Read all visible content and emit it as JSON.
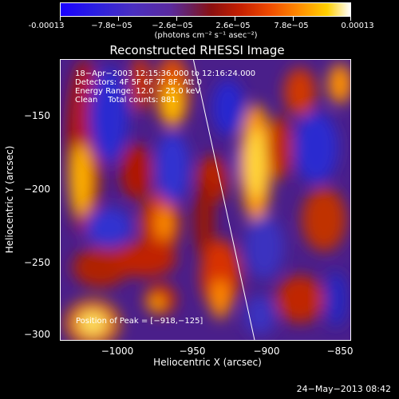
{
  "colorbar": {
    "tick_labels": [
      "-0.00013",
      "−7.8e−05",
      "−2.6e−05",
      "2.6e−05",
      "7.8e−05",
      "0.00013"
    ],
    "unit": "(photons cm⁻² s⁻¹ asec⁻²)"
  },
  "title": "Reconstructed RHESSI Image",
  "info": {
    "line1": "18−Apr−2003 12:15:36.000 to 12:16:24.000",
    "line2": "Detectors: 4F 5F 6F 7F 8F, Att 0",
    "line3": "Energy Range: 12.0 − 25.0 keV",
    "line4": "Clean    Total counts: 881."
  },
  "peak": "Position of Peak = [−918,−125]",
  "axes": {
    "xlabel": "Heliocentric X (arcsec)",
    "ylabel": "Heliocentric Y (arcsec)",
    "x_ticks": [
      "−1000",
      "−950",
      "−900",
      "−850"
    ],
    "y_ticks": [
      "−150",
      "−200",
      "−250",
      "−300"
    ]
  },
  "footer": "24−May−2013 08:42",
  "colors": {
    "background": "#000000",
    "limb_line": "#ffffff"
  }
}
